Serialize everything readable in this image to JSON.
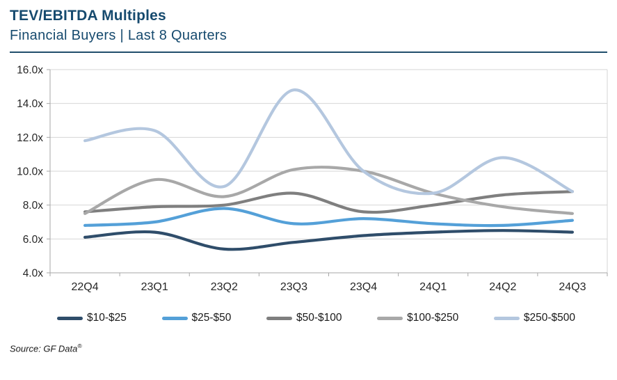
{
  "header": {
    "title": "TEV/EBITDA Multiples",
    "subtitle": "Financial Buyers | Last 8 Quarters"
  },
  "source": {
    "text": "Source: GF Data",
    "mark": "®"
  },
  "colors": {
    "title_navy": "#164a6e",
    "divider": "#1f4e6b",
    "gridline": "#d6d6d6",
    "axis": "#a6a6a6",
    "tick_text": "#262626"
  },
  "chart_data": {
    "type": "line",
    "title": "TEV/EBITDA Multiples",
    "subtitle": "Financial Buyers | Last 8 Quarters",
    "xlabel": "",
    "ylabel": "",
    "ylim": [
      4.0,
      16.0
    ],
    "ytick_step": 2.0,
    "ytick_suffix": "x",
    "grid": true,
    "line_style": "smooth",
    "legend_position": "bottom",
    "categories": [
      "22Q4",
      "23Q1",
      "23Q2",
      "23Q3",
      "23Q4",
      "24Q1",
      "24Q2",
      "24Q3"
    ],
    "series": [
      {
        "name": "$10-$25",
        "color": "#2f4d6a",
        "values": [
          6.1,
          6.4,
          5.4,
          5.8,
          6.2,
          6.4,
          6.5,
          6.4
        ]
      },
      {
        "name": "$25-$50",
        "color": "#54a0d8",
        "values": [
          6.8,
          7.0,
          7.8,
          6.9,
          7.2,
          6.9,
          6.8,
          7.1
        ]
      },
      {
        "name": "$50-$100",
        "color": "#7f7f7f",
        "values": [
          7.6,
          7.9,
          8.0,
          8.7,
          7.6,
          8.0,
          8.6,
          8.8
        ]
      },
      {
        "name": "$100-$250",
        "color": "#a8a8a8",
        "values": [
          7.5,
          9.5,
          8.5,
          10.1,
          10.0,
          8.7,
          7.9,
          7.5
        ]
      },
      {
        "name": "$250-$500",
        "color": "#b4c7df",
        "values": [
          11.8,
          12.4,
          9.1,
          14.8,
          10.0,
          8.7,
          10.8,
          8.8
        ]
      }
    ]
  }
}
